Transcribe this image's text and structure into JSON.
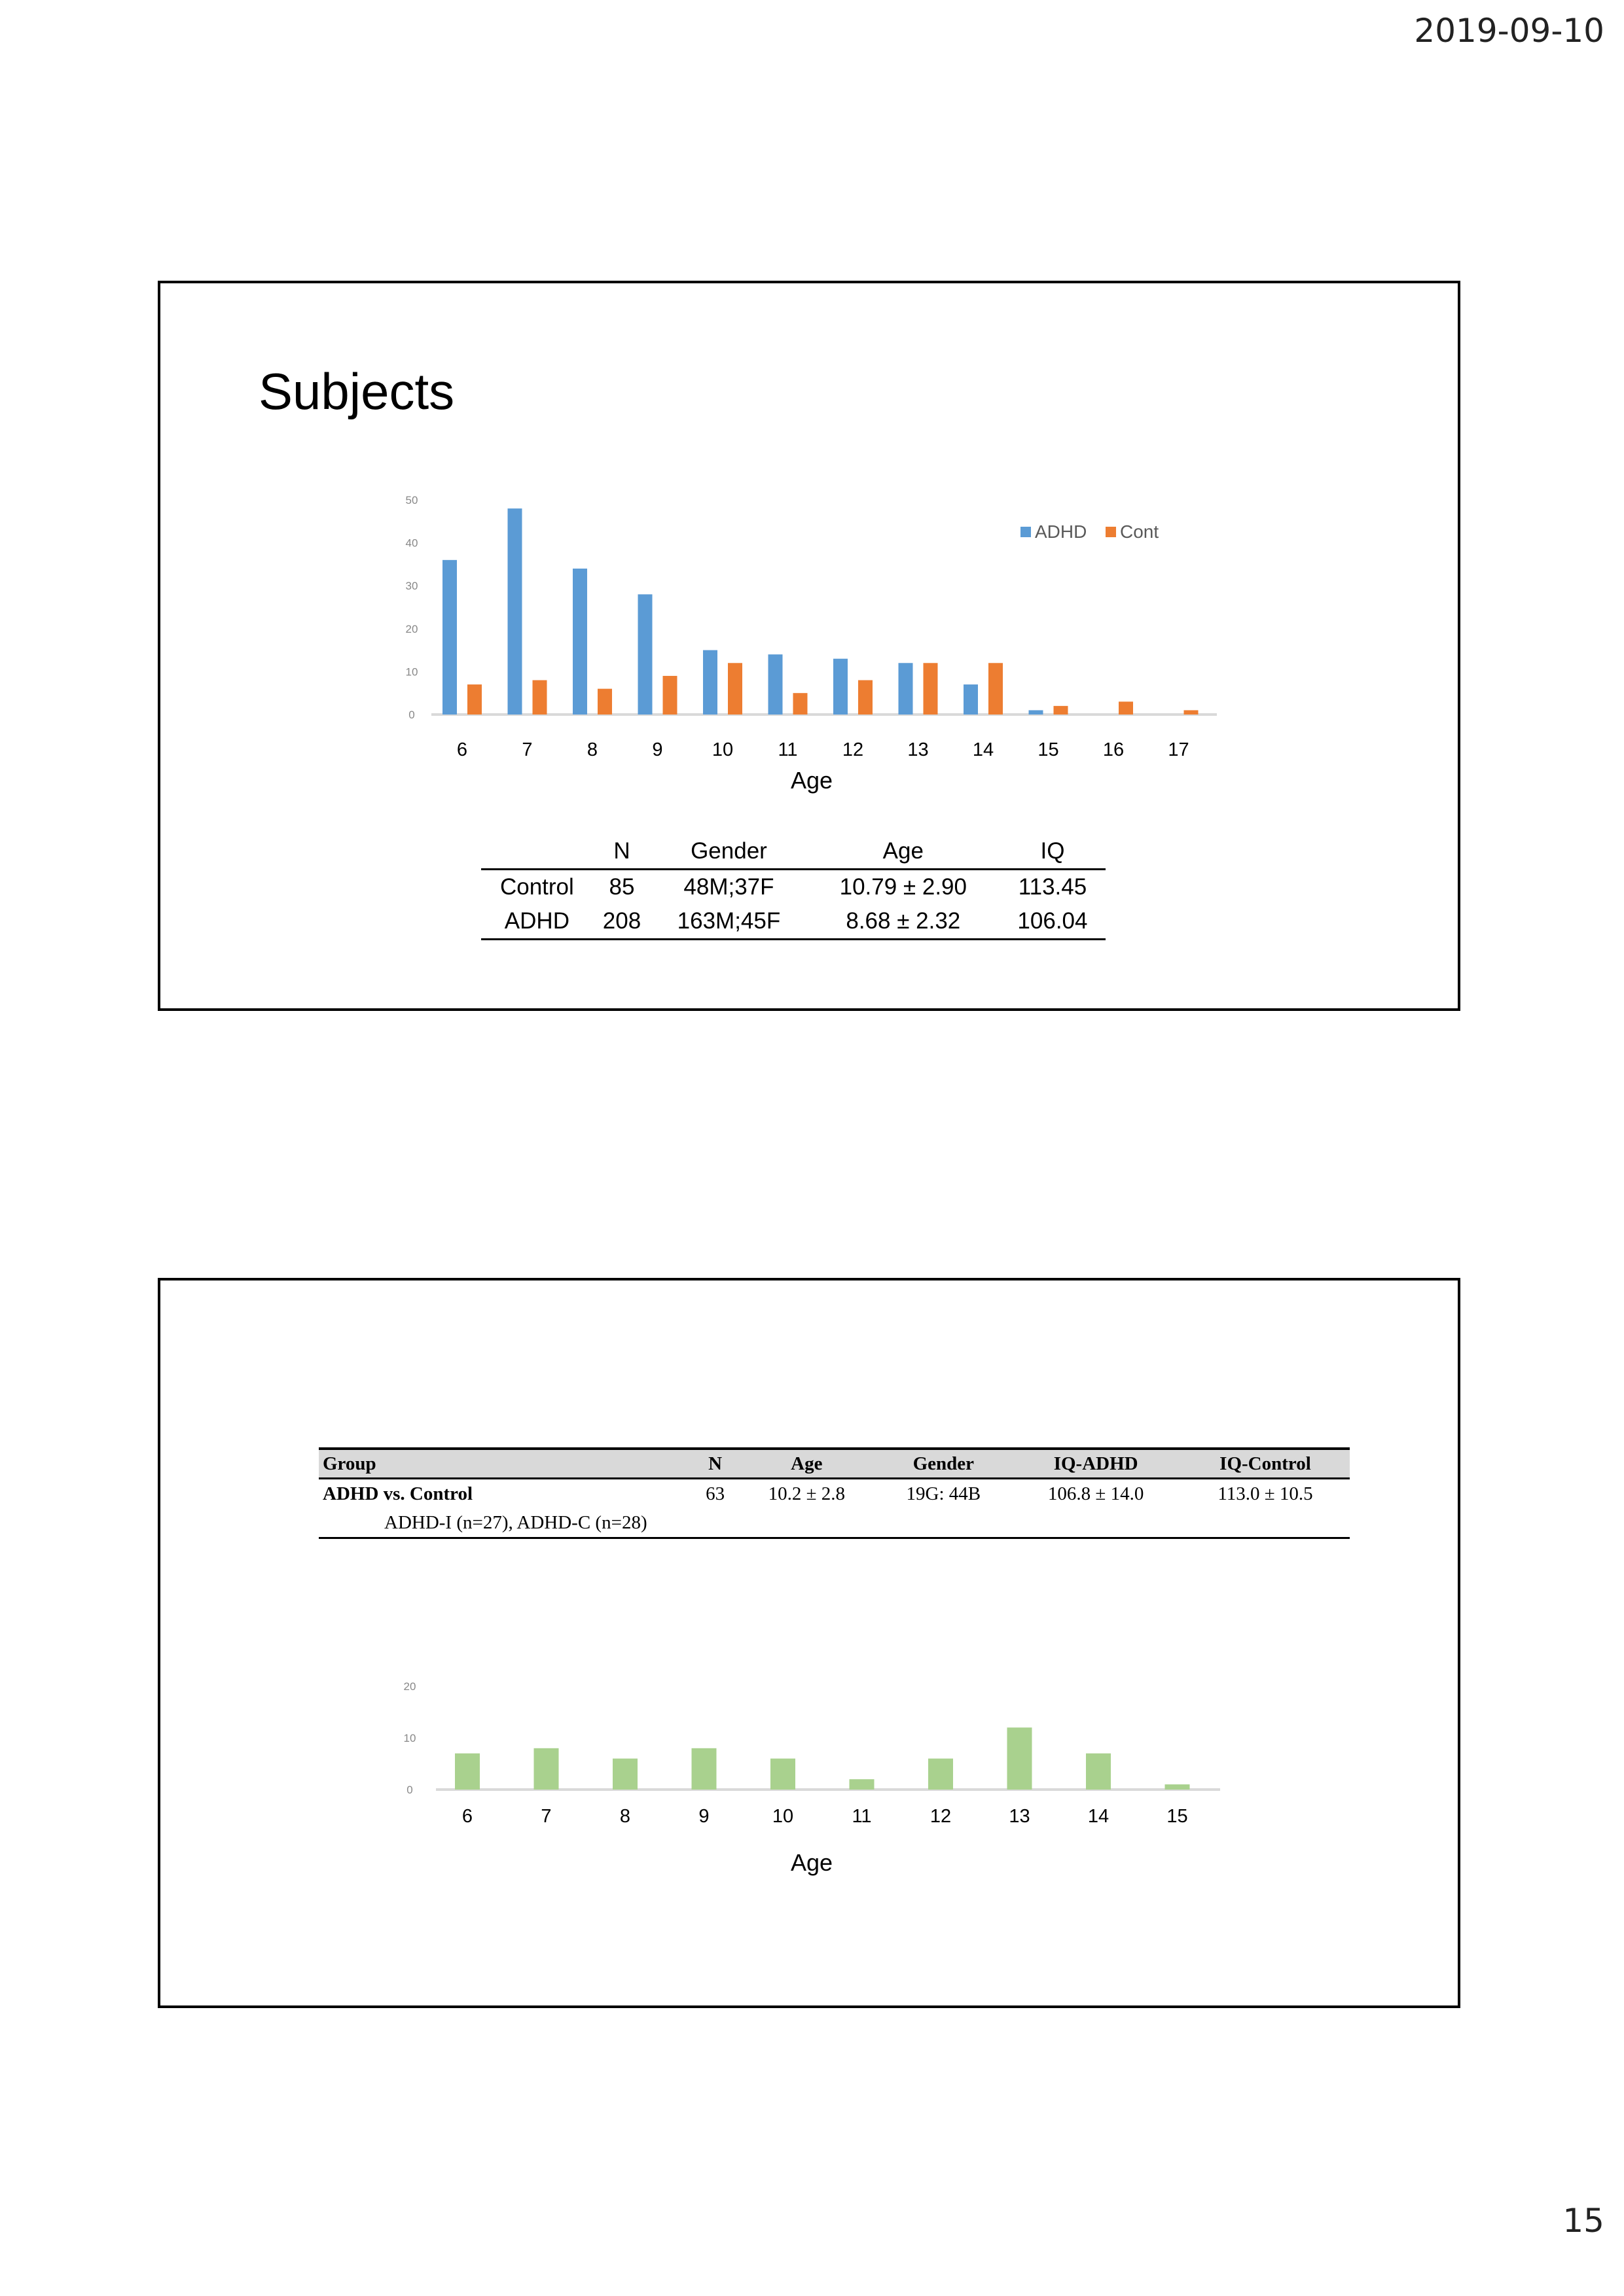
{
  "header": {
    "date": "2019-09-10"
  },
  "footer": {
    "page_number": "15"
  },
  "slide1": {
    "title": "Subjects",
    "table": {
      "headers": [
        "",
        "N",
        "Gender",
        "Age",
        "IQ"
      ],
      "rows": [
        [
          "Control",
          "85",
          "48M;37F",
          "10.79 ± 2.90",
          "113.45"
        ],
        [
          "ADHD",
          "208",
          "163M;45F",
          "8.68 ± 2.32",
          "106.04"
        ]
      ]
    }
  },
  "slide2": {
    "table": {
      "headers": [
        "Group",
        "N",
        "Age",
        "Gender",
        "IQ-ADHD",
        "IQ-Control"
      ],
      "rows": [
        [
          "ADHD vs. Control",
          "63",
          "10.2 ± 2.8",
          "19G: 44B",
          "106.8 ± 14.0",
          "113.0 ± 10.5"
        ]
      ],
      "subrow": "ADHD-I (n=27), ADHD-C (n=28)"
    }
  },
  "chart_data": [
    {
      "type": "bar",
      "categories": [
        "6",
        "7",
        "8",
        "9",
        "10",
        "11",
        "12",
        "13",
        "14",
        "15",
        "16",
        "17"
      ],
      "series": [
        {
          "name": "ADHD",
          "color": "#5b9bd5",
          "values": [
            36,
            48,
            34,
            28,
            15,
            14,
            13,
            12,
            7,
            1,
            0,
            0
          ]
        },
        {
          "name": "Cont",
          "color": "#ed7d31",
          "values": [
            7,
            8,
            6,
            9,
            12,
            5,
            8,
            12,
            12,
            2,
            3,
            1
          ]
        }
      ],
      "xlabel": "Age",
      "ylabel": "",
      "ylim": [
        0,
        50
      ],
      "yticks": [
        "0",
        "10",
        "20",
        "30",
        "40",
        "50"
      ],
      "grid": false,
      "legend": "top-right"
    },
    {
      "type": "bar",
      "categories": [
        "6",
        "7",
        "8",
        "9",
        "10",
        "11",
        "12",
        "13",
        "14",
        "15"
      ],
      "series": [
        {
          "color": "#a9d18e",
          "values": [
            7,
            8,
            6,
            8,
            6,
            2,
            6,
            12,
            7,
            1
          ]
        }
      ],
      "xlabel": "Age",
      "ylabel": "",
      "ylim": [
        0,
        20
      ],
      "yticks": [
        "0",
        "10",
        "20"
      ],
      "grid": false
    }
  ]
}
